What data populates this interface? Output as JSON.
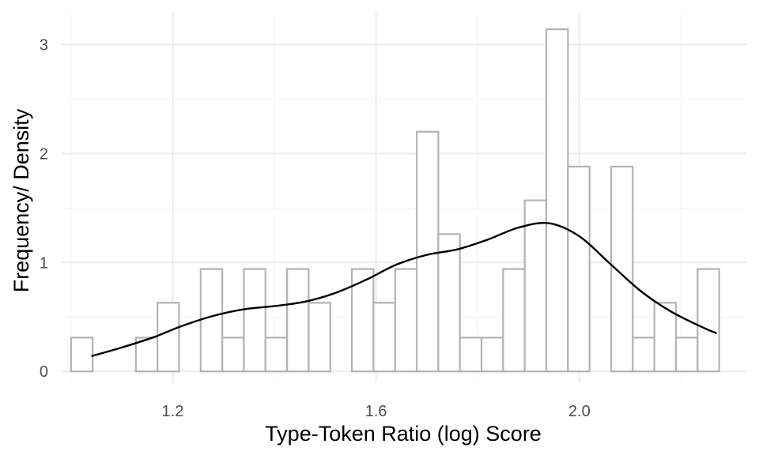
{
  "chart_data": {
    "type": "bar",
    "overlay": "density-line",
    "xlabel": "Type-Token Ratio (log) Score",
    "ylabel": "Frequency/ Density",
    "xlim": [
      0.98,
      2.33
    ],
    "ylim": [
      -0.1,
      3.3
    ],
    "x_ticks": [
      1.2,
      1.6,
      2.0
    ],
    "x_tick_labels": [
      "1.2",
      "1.6",
      "2.0"
    ],
    "y_ticks": [
      0,
      1,
      2,
      3
    ],
    "y_tick_labels": [
      "0",
      "1",
      "2",
      "3"
    ],
    "grid": true,
    "bin_width": 0.0425,
    "bins_start": 1.0,
    "bar_values": [
      0.31,
      0,
      0,
      0.31,
      0.63,
      0,
      0.94,
      0.31,
      0.94,
      0.31,
      0.94,
      0.63,
      0,
      0.94,
      0.63,
      0.94,
      2.2,
      1.26,
      0.31,
      0.31,
      0.94,
      1.57,
      3.14,
      1.88,
      0,
      1.88,
      0.31,
      0.63,
      0.31,
      0.94
    ],
    "density": {
      "x": [
        1.04,
        1.1,
        1.16,
        1.22,
        1.28,
        1.34,
        1.4,
        1.46,
        1.52,
        1.58,
        1.64,
        1.7,
        1.76,
        1.82,
        1.88,
        1.94,
        2.0,
        2.06,
        2.12,
        2.18,
        2.24,
        2.27
      ],
      "y": [
        0.14,
        0.22,
        0.31,
        0.42,
        0.51,
        0.57,
        0.6,
        0.64,
        0.72,
        0.84,
        0.98,
        1.07,
        1.12,
        1.21,
        1.32,
        1.36,
        1.24,
        0.99,
        0.74,
        0.55,
        0.41,
        0.35
      ]
    },
    "colors": {
      "bar_stroke": "#b3b3b3",
      "bar_fill": "#ffffff",
      "density_line": "#000000",
      "grid_major": "#ebebeb",
      "grid_minor": "#f5f5f5",
      "tick_text": "#4d4d4d",
      "axis_title": "#000000"
    }
  }
}
